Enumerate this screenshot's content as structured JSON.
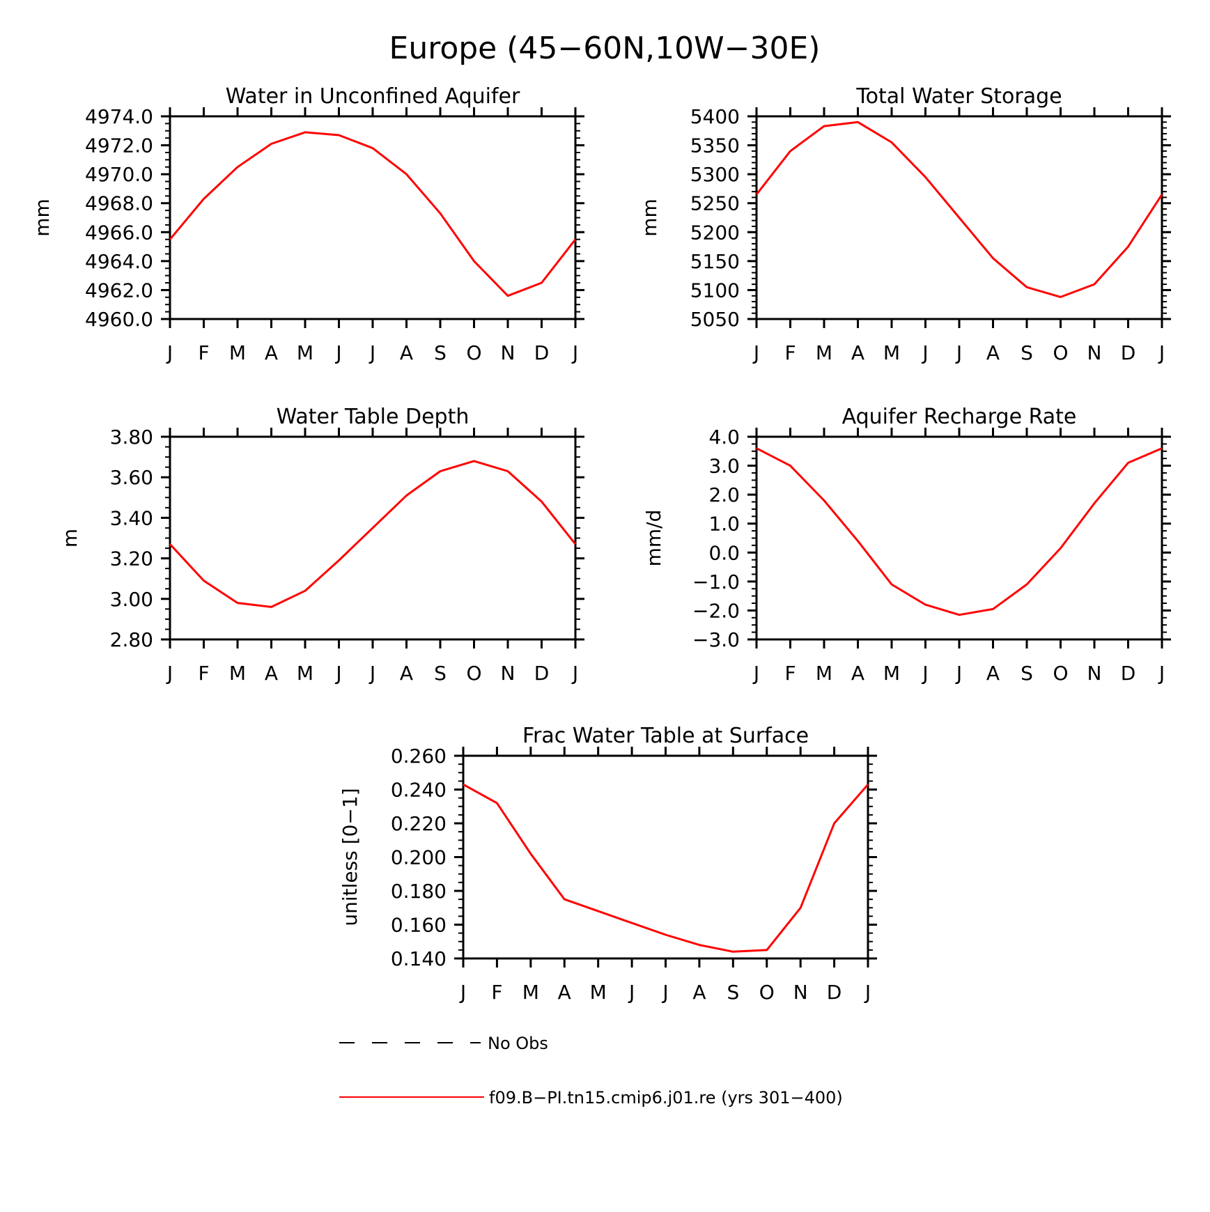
{
  "figure": {
    "title": "Europe (45−60N,10W−30E)"
  },
  "colors": {
    "model_line": "#ff0000",
    "obs_line": "#000000",
    "axis": "#000000"
  },
  "chart_data": [
    {
      "type": "line",
      "title": "Water in Unconfined Aquifer",
      "ylabel": "mm",
      "xlabel": "",
      "ylim": [
        4960.0,
        4974.0
      ],
      "y_ticks": [
        4960.0,
        4962.0,
        4964.0,
        4966.0,
        4968.0,
        4970.0,
        4972.0,
        4974.0
      ],
      "y_tick_labels": [
        "4960.0",
        "4962.0",
        "4964.0",
        "4966.0",
        "4968.0",
        "4970.0",
        "4972.0",
        "4974.0"
      ],
      "y_minor_per_major": 4,
      "categories": [
        "J",
        "F",
        "M",
        "A",
        "M",
        "J",
        "J",
        "A",
        "S",
        "O",
        "N",
        "D",
        "J"
      ],
      "series": [
        {
          "values": [
            4965.5,
            4968.3,
            4970.5,
            4972.1,
            4972.9,
            4972.7,
            4971.8,
            4970.0,
            4967.3,
            4964.0,
            4961.6,
            4962.5,
            4965.5
          ]
        }
      ]
    },
    {
      "type": "line",
      "title": "Total Water Storage",
      "ylabel": "mm",
      "xlabel": "",
      "ylim": [
        5050,
        5400
      ],
      "y_ticks": [
        5050,
        5100,
        5150,
        5200,
        5250,
        5300,
        5350,
        5400
      ],
      "y_tick_labels": [
        "5050",
        "5100",
        "5150",
        "5200",
        "5250",
        "5300",
        "5350",
        "5400"
      ],
      "y_minor_per_major": 5,
      "categories": [
        "J",
        "F",
        "M",
        "A",
        "M",
        "J",
        "J",
        "A",
        "S",
        "O",
        "N",
        "D",
        "J"
      ],
      "series": [
        {
          "values": [
            5265,
            5340,
            5383,
            5390,
            5355,
            5295,
            5225,
            5155,
            5105,
            5088,
            5110,
            5175,
            5265
          ]
        }
      ]
    },
    {
      "type": "line",
      "title": "Water Table Depth",
      "ylabel": "m",
      "xlabel": "",
      "ylim": [
        2.8,
        3.8
      ],
      "y_ticks": [
        2.8,
        3.0,
        3.2,
        3.4,
        3.6,
        3.8
      ],
      "y_tick_labels": [
        "2.80",
        "3.00",
        "3.20",
        "3.40",
        "3.60",
        "3.80"
      ],
      "y_minor_per_major": 4,
      "categories": [
        "J",
        "F",
        "M",
        "A",
        "M",
        "J",
        "J",
        "A",
        "S",
        "O",
        "N",
        "D",
        "J"
      ],
      "series": [
        {
          "values": [
            3.27,
            3.09,
            2.98,
            2.96,
            3.04,
            3.19,
            3.35,
            3.51,
            3.63,
            3.68,
            3.63,
            3.48,
            3.27
          ]
        }
      ]
    },
    {
      "type": "line",
      "title": "Aquifer Recharge Rate",
      "ylabel": "mm/d",
      "xlabel": "",
      "ylim": [
        -3.0,
        4.0
      ],
      "y_ticks": [
        -3.0,
        -2.0,
        -1.0,
        0.0,
        1.0,
        2.0,
        3.0,
        4.0
      ],
      "y_tick_labels": [
        "−3.0",
        "−2.0",
        "−1.0",
        "0.0",
        "1.0",
        "2.0",
        "3.0",
        "4.0"
      ],
      "y_minor_per_major": 4,
      "categories": [
        "J",
        "F",
        "M",
        "A",
        "M",
        "J",
        "J",
        "A",
        "S",
        "O",
        "N",
        "D",
        "J"
      ],
      "series": [
        {
          "values": [
            3.6,
            3.0,
            1.8,
            0.4,
            -1.1,
            -1.8,
            -2.15,
            -1.95,
            -1.1,
            0.15,
            1.7,
            3.1,
            3.6
          ]
        }
      ]
    },
    {
      "type": "line",
      "title": "Frac Water Table at Surface",
      "ylabel": "unitless [0−1]",
      "xlabel": "",
      "ylim": [
        0.14,
        0.26
      ],
      "y_ticks": [
        0.14,
        0.16,
        0.18,
        0.2,
        0.22,
        0.24,
        0.26
      ],
      "y_tick_labels": [
        "0.140",
        "0.160",
        "0.180",
        "0.200",
        "0.220",
        "0.240",
        "0.260"
      ],
      "y_minor_per_major": 4,
      "categories": [
        "J",
        "F",
        "M",
        "A",
        "M",
        "J",
        "J",
        "A",
        "S",
        "O",
        "N",
        "D",
        "J"
      ],
      "series": [
        {
          "values": [
            0.243,
            0.232,
            0.202,
            0.175,
            0.168,
            0.161,
            0.154,
            0.148,
            0.144,
            0.145,
            0.17,
            0.22,
            0.243
          ]
        }
      ]
    }
  ],
  "legend": {
    "placement": "bottom",
    "items": [
      {
        "label": "No Obs",
        "style": "dashed"
      },
      {
        "label": "f09.B−PI.tn15.cmip6.j01.re (yrs 301−400)",
        "style": "solid"
      }
    ]
  }
}
